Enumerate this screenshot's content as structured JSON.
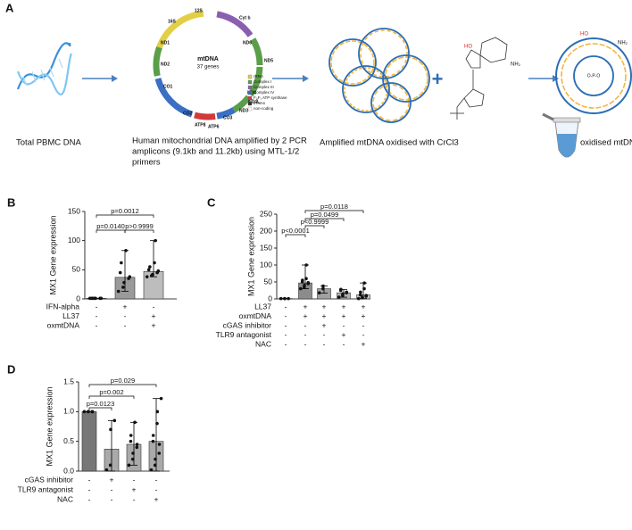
{
  "panel_a": {
    "letter": "A",
    "captions": {
      "pbmc": "Total PBMC DNA",
      "amplified": [
        "Human mitochondrial DNA amplified by 2 PCR",
        "amplicons (9.1kb and 11.2kb) using MTL-1/2",
        "primers"
      ],
      "oxidised_step": "Amplified mtDNA oxidised with CrCl3",
      "result": "oxidised mtDNA"
    },
    "map": {
      "title": "mtDNA",
      "subtitle": "37 genes",
      "genes": [
        "12S",
        "16S",
        "ND1",
        "ND2",
        "CO1",
        "CO2",
        "ATP8",
        "ATP6",
        "CO3",
        "ND3",
        "ND4L",
        "ND4",
        "ND5",
        "ND6",
        "Cyt b"
      ],
      "legend": [
        "rRNA",
        "Complex I",
        "Complex III",
        "Complex IV",
        "F₀F₁ ATP synthase",
        "tRNAs",
        "non-coding"
      ]
    },
    "molecule": {
      "hydroxyl": "HO",
      "amine": "NH₂",
      "phosphate": "O-P-O"
    }
  },
  "chart_data": [
    {
      "type": "bar",
      "panel": "B",
      "ylabel": "MX1 Gene expression",
      "ylim": [
        0,
        150
      ],
      "yticks": [
        0,
        50,
        100,
        150
      ],
      "values": [
        1,
        37,
        47
      ],
      "error_low": [
        1,
        13,
        38
      ],
      "error_high": [
        1,
        83,
        100
      ],
      "colors": [
        "#808080",
        "#9a9a9a",
        "#bdbdbd"
      ],
      "points": [
        [
          1,
          1,
          1,
          1,
          1,
          1,
          1
        ],
        [
          13,
          20,
          28,
          35,
          38,
          45,
          62,
          83
        ],
        [
          38,
          40,
          42,
          45,
          48,
          50,
          55,
          62,
          100
        ]
      ],
      "conditions": [
        {
          "name": "IFN-alpha",
          "signs": [
            "-",
            "+",
            "-"
          ]
        },
        {
          "name": "LL37",
          "signs": [
            "-",
            "-",
            "+"
          ]
        },
        {
          "name": "oxmtDNA",
          "signs": [
            "-",
            "-",
            "+"
          ]
        }
      ],
      "comparisons": [
        "p=0.0012",
        "p=0.0140",
        "p>0.9999"
      ]
    },
    {
      "type": "bar",
      "panel": "C",
      "ylabel": "MX1 Gene expression",
      "ylim": [
        0,
        250
      ],
      "yticks": [
        0,
        50,
        100,
        150,
        200,
        250
      ],
      "values": [
        1,
        47,
        30,
        18,
        12
      ],
      "error_low": [
        1,
        30,
        17,
        5,
        1
      ],
      "error_high": [
        1,
        100,
        38,
        28,
        47
      ],
      "colors": [
        "#808080",
        "#8c8c8c",
        "#a0a0a0",
        "#b0b0b0",
        "#c4c4c4"
      ],
      "points": [
        [
          1,
          1,
          1,
          1
        ],
        [
          30,
          35,
          40,
          45,
          48,
          50,
          55,
          60,
          100
        ],
        [
          18,
          30,
          38
        ],
        [
          5,
          10,
          15,
          18,
          20,
          25,
          28
        ],
        [
          1,
          3,
          5,
          8,
          10,
          12,
          20,
          30,
          47
        ]
      ],
      "conditions": [
        {
          "name": "LL37",
          "signs": [
            "-",
            "+",
            "+",
            "+",
            "+"
          ]
        },
        {
          "name": "oxmtDNA",
          "signs": [
            "-",
            "+",
            "+",
            "+",
            "+"
          ]
        },
        {
          "name": "cGAS inhibitor",
          "signs": [
            "-",
            "-",
            "+",
            "-",
            "-"
          ]
        },
        {
          "name": "TLR9 antagonist",
          "signs": [
            "-",
            "-",
            "-",
            "+",
            "-"
          ]
        },
        {
          "name": "NAC",
          "signs": [
            "-",
            "-",
            "-",
            "-",
            "+"
          ]
        }
      ],
      "comparisons": [
        "p=0.0118",
        "p=0.0499",
        "p<0.9999",
        "p<0.0001"
      ]
    },
    {
      "type": "bar",
      "panel": "D",
      "ylabel": "MX1 Gene expression",
      "ylim": [
        0,
        1.5
      ],
      "yticks": [
        {
          "value": 0,
          "label": "0.0"
        },
        0.5,
        {
          "value": 1,
          "label": "1.0"
        },
        1.5
      ],
      "values": [
        1,
        0.37,
        0.45,
        0.5
      ],
      "error_low": [
        1,
        0,
        0.1,
        0
      ],
      "error_high": [
        1,
        0.85,
        0.82,
        1.22
      ],
      "colors": [
        "#777777",
        "#aaaaaa",
        "#aaaaaa",
        "#aaaaaa"
      ],
      "points": [
        [
          1,
          1,
          1,
          1,
          1
        ],
        [
          0.02,
          0.1,
          0.7,
          0.85
        ],
        [
          0.1,
          0.2,
          0.3,
          0.4,
          0.45,
          0.5,
          0.6,
          0.82
        ],
        [
          0.02,
          0.1,
          0.2,
          0.3,
          0.45,
          0.5,
          0.6,
          0.8,
          1.0,
          1.22
        ]
      ],
      "conditions": [
        {
          "name": "cGAS inhibitor",
          "signs": [
            "-",
            "+",
            "-",
            "-"
          ]
        },
        {
          "name": "TLR9 antagonist",
          "signs": [
            "-",
            "-",
            "+",
            "-"
          ]
        },
        {
          "name": "NAC",
          "signs": [
            "-",
            "-",
            "-",
            "+"
          ]
        }
      ],
      "comparisons": [
        "p=0.029",
        "p=0.002",
        "p=0.0123"
      ]
    }
  ]
}
